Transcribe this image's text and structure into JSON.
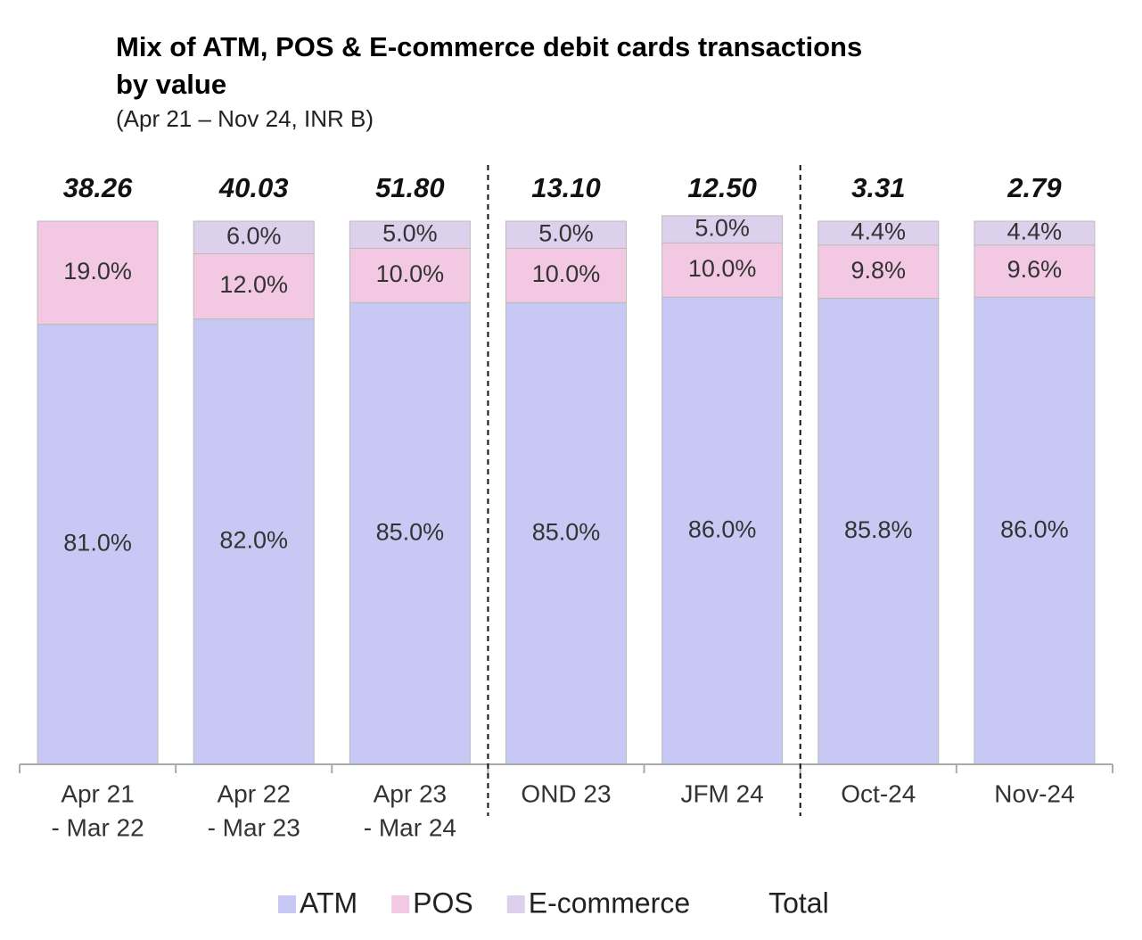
{
  "chart_data": {
    "type": "stacked_bar",
    "title": [
      "Mix of ATM, POS & E-commerce debit cards transactions",
      "by value"
    ],
    "subtitle": "(Apr 21 – Nov 24, INR B)",
    "categories": [
      [
        "Apr 21",
        " - Mar 22"
      ],
      [
        "Apr 22",
        " - Mar 23"
      ],
      [
        "Apr 23",
        " - Mar 24"
      ],
      [
        "OND 23"
      ],
      [
        "JFM 24"
      ],
      [
        "Oct-24"
      ],
      [
        "Nov-24"
      ]
    ],
    "ylim": [
      0,
      100
    ],
    "dividers_before": [
      3,
      5
    ],
    "series": [
      {
        "name": "ATM",
        "color": "#c8c8f4",
        "values": [
          81.0,
          82.0,
          85.0,
          85.0,
          86.0,
          85.8,
          86.0
        ],
        "value_labels": [
          "81.0%",
          "82.0%",
          "85.0%",
          "85.0%",
          "86.0%",
          "85.8%",
          "86.0%"
        ]
      },
      {
        "name": "POS",
        "color": "#f2c8e2",
        "values": [
          19.0,
          12.0,
          10.0,
          10.0,
          10.0,
          9.8,
          9.6
        ],
        "value_labels": [
          "19.0%",
          "12.0%",
          "10.0%",
          "10.0%",
          "10.0%",
          "9.8%",
          "9.6%"
        ]
      },
      {
        "name": "E-commerce",
        "color": "#dcd0ec",
        "values": [
          null,
          6.0,
          5.0,
          5.0,
          5.0,
          4.4,
          4.4
        ],
        "value_labels": [
          null,
          "6.0%",
          "5.0%",
          "5.0%",
          "5.0%",
          "4.4%",
          "4.4%"
        ]
      }
    ],
    "totals": {
      "name": "Total",
      "values": [
        38.26,
        40.03,
        51.8,
        13.1,
        12.5,
        3.31,
        2.79
      ],
      "value_labels": [
        "38.26",
        "40.03",
        "51.80",
        "13.10",
        "12.50",
        "3.31",
        "2.79"
      ]
    }
  }
}
